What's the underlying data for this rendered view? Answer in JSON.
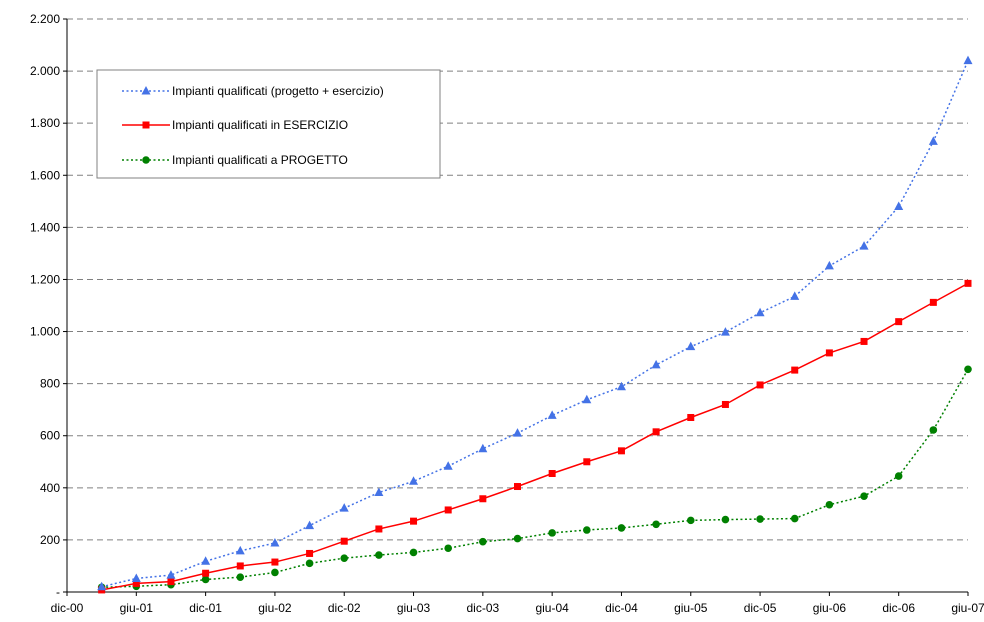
{
  "chart_data": {
    "type": "line",
    "title": "",
    "xlabel": "",
    "ylabel": "",
    "ylim": [
      0,
      2200
    ],
    "y_tick_labels": [
      "-",
      "200",
      "400",
      "600",
      "800",
      "1.000",
      "1.200",
      "1.400",
      "1.600",
      "1.800",
      "2.000",
      "2.200"
    ],
    "x_tick_labels": [
      "dic-00",
      "giu-01",
      "dic-01",
      "giu-02",
      "dic-02",
      "giu-03",
      "dic-03",
      "giu-04",
      "dic-04",
      "giu-05",
      "dic-05",
      "giu-06",
      "dic-06",
      "giu-07"
    ],
    "x": [
      "mar-01",
      "giu-01",
      "set-01",
      "dic-01",
      "mar-02",
      "giu-02",
      "set-02",
      "dic-02",
      "mar-03",
      "giu-03",
      "set-03",
      "dic-03",
      "mar-04",
      "giu-04",
      "set-04",
      "dic-04",
      "mar-05",
      "giu-05",
      "set-05",
      "dic-05",
      "mar-06",
      "giu-06",
      "set-06",
      "dic-06",
      "mar-07",
      "giu-07"
    ],
    "grid": "horizontal dashed",
    "legend_position": "top-left",
    "series": [
      {
        "name": "Impianti qualificati (progetto + esercizio)",
        "color": "#4472E6",
        "line_style": "dotted",
        "marker": "triangle",
        "values": [
          20,
          52,
          65,
          118,
          158,
          188,
          255,
          322,
          382,
          425,
          483,
          550,
          610,
          678,
          738,
          788,
          872,
          942,
          998,
          1072,
          1135,
          1252,
          1328,
          1480,
          1730,
          2040
        ]
      },
      {
        "name": "Impianti qualificati in ESERCIZIO",
        "color": "#FF0000",
        "line_style": "solid",
        "marker": "square",
        "values": [
          8,
          33,
          40,
          72,
          100,
          115,
          148,
          195,
          242,
          272,
          315,
          358,
          405,
          455,
          500,
          542,
          615,
          670,
          720,
          795,
          852,
          918,
          962,
          1038,
          1112,
          1185
        ]
      },
      {
        "name": "Impianti qualificati a PROGETTO",
        "color": "#008000",
        "line_style": "dotted",
        "marker": "circle",
        "values": [
          18,
          22,
          28,
          48,
          57,
          75,
          110,
          130,
          142,
          152,
          168,
          193,
          205,
          227,
          238,
          246,
          260,
          275,
          278,
          280,
          282,
          335,
          368,
          445,
          622,
          855
        ]
      }
    ]
  }
}
